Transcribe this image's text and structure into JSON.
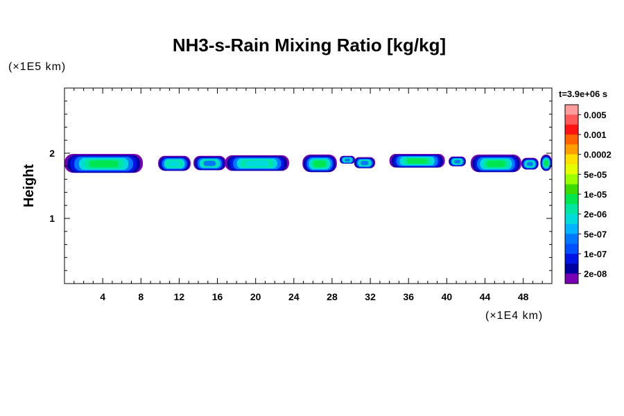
{
  "chart_data": {
    "type": "heatmap",
    "title": "NH3-s-Rain Mixing Ratio [kg/kg]",
    "xlabel": "",
    "x_unit": "(×1E4 km)",
    "ylabel": "Height",
    "y_unit": "(×1E5 km)",
    "xlim": [
      0,
      51
    ],
    "ylim": [
      0,
      3
    ],
    "x_ticks": [
      4,
      8,
      12,
      16,
      20,
      24,
      28,
      32,
      36,
      40,
      44,
      48
    ],
    "y_ticks": [
      1,
      2
    ],
    "time_label": "t=3.9e+06 s",
    "colorbar": {
      "labels": [
        "0.005",
        "0.001",
        "0.0002",
        "5e-05",
        "1e-05",
        "2e-06",
        "5e-07",
        "1e-07",
        "2e-08"
      ],
      "colors": [
        "#ff9c9c",
        "#ff5a5a",
        "#ff1414",
        "#ff6400",
        "#ffa000",
        "#ffe100",
        "#e6ff00",
        "#9bff00",
        "#3cdc00",
        "#00e650",
        "#00e6a0",
        "#00dcdc",
        "#00b4ff",
        "#0078ff",
        "#0050ff",
        "#0014e6",
        "#0000a0",
        "#7a00b4"
      ]
    },
    "cloud_cells": [
      {
        "x_start": 0.0,
        "x_end": 8.2,
        "y_bottom": 1.7,
        "y_top": 1.99,
        "core_level": "1e-05"
      },
      {
        "x_start": 9.8,
        "x_end": 13.2,
        "y_bottom": 1.73,
        "y_top": 1.96,
        "core_level": "2e-06"
      },
      {
        "x_start": 13.5,
        "x_end": 16.9,
        "y_bottom": 1.74,
        "y_top": 1.96,
        "core_level": "5e-07"
      },
      {
        "x_start": 16.8,
        "x_end": 23.5,
        "y_bottom": 1.73,
        "y_top": 1.97,
        "core_level": "2e-06"
      },
      {
        "x_start": 24.9,
        "x_end": 28.5,
        "y_bottom": 1.71,
        "y_top": 1.98,
        "core_level": "1e-05"
      },
      {
        "x_start": 28.8,
        "x_end": 30.4,
        "y_bottom": 1.84,
        "y_top": 1.96,
        "core_level": "5e-07"
      },
      {
        "x_start": 30.3,
        "x_end": 32.5,
        "y_bottom": 1.77,
        "y_top": 1.94,
        "core_level": "5e-07"
      },
      {
        "x_start": 34.0,
        "x_end": 39.8,
        "y_bottom": 1.78,
        "y_top": 1.99,
        "core_level": "1e-05"
      },
      {
        "x_start": 40.2,
        "x_end": 42.0,
        "y_bottom": 1.8,
        "y_top": 1.95,
        "core_level": "5e-07"
      },
      {
        "x_start": 42.5,
        "x_end": 47.8,
        "y_bottom": 1.71,
        "y_top": 1.98,
        "core_level": "1e-05"
      },
      {
        "x_start": 47.8,
        "x_end": 49.6,
        "y_bottom": 1.75,
        "y_top": 1.93,
        "core_level": "5e-07"
      },
      {
        "x_start": 49.8,
        "x_end": 51.0,
        "y_bottom": 1.73,
        "y_top": 1.98,
        "core_level": "1e-05"
      }
    ]
  }
}
